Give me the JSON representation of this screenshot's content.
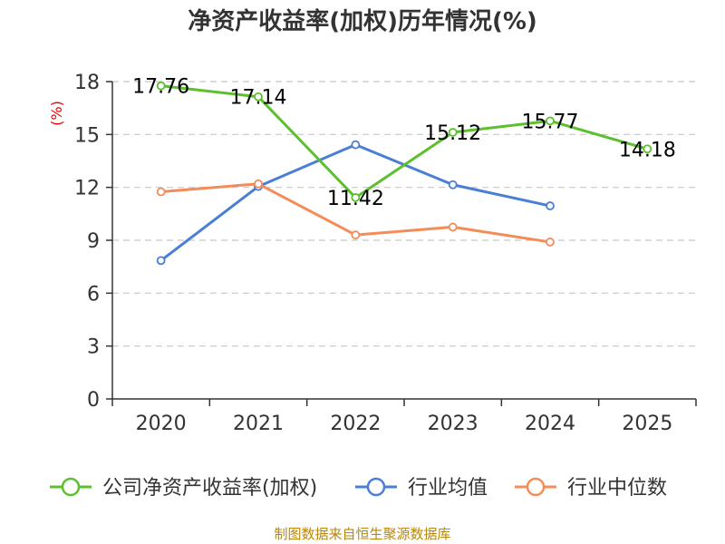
{
  "chart_data": {
    "type": "line",
    "title": "净资产收益率(加权)历年情况(%)",
    "ylabel": "(%)",
    "xlabel": "",
    "categories": [
      "2020",
      "2021",
      "2022",
      "2023",
      "2024",
      "2025"
    ],
    "yticks": [
      0,
      3,
      6,
      9,
      12,
      15,
      18
    ],
    "ylim": [
      0,
      18
    ],
    "grid": true,
    "legend_position": "bottom",
    "series": [
      {
        "name": "公司净资产收益率(加权)",
        "color": "#5cc02e",
        "values": [
          17.76,
          17.14,
          11.42,
          15.12,
          15.77,
          14.18
        ],
        "labels": [
          "17.76",
          "17.14",
          "11.42",
          "15.12",
          "15.77",
          "14.18"
        ]
      },
      {
        "name": "行业均值",
        "color": "#4a7fd6",
        "values": [
          7.85,
          12.05,
          14.42,
          12.15,
          10.95,
          null
        ]
      },
      {
        "name": "行业中位数",
        "color": "#f48c5a",
        "values": [
          11.75,
          12.2,
          9.3,
          9.75,
          8.9,
          null
        ]
      }
    ]
  },
  "source": "制图数据来自恒生聚源数据库"
}
